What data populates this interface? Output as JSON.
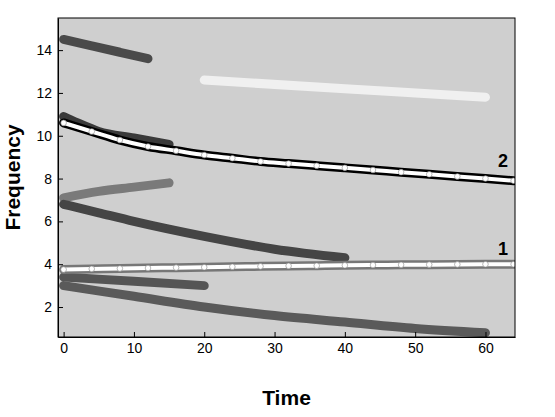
{
  "chart_data": {
    "type": "line",
    "x_label": "Time",
    "y_label": "Frequency",
    "xlim": [
      -0.8,
      64.2
    ],
    "ylim": [
      0.6,
      15.5
    ],
    "xticks": [
      0,
      10,
      20,
      30,
      40,
      50,
      60
    ],
    "yticks": [
      2,
      4,
      6,
      8,
      10,
      12,
      14
    ],
    "series": [
      {
        "color": "#4a4a4a",
        "line_style": "solid",
        "x": [
          0,
          4,
          8,
          12
        ],
        "values": [
          14.5,
          14.2,
          13.9,
          13.6
        ]
      },
      {
        "color": "#3a3a3a",
        "line_style": "solid",
        "x": [
          0,
          2,
          5,
          10,
          15
        ],
        "values": [
          10.9,
          10.6,
          10.2,
          9.9,
          9.6
        ]
      },
      {
        "color": "#7a7a7a",
        "line_style": "solid",
        "x": [
          0,
          5,
          10,
          15
        ],
        "values": [
          7.1,
          7.4,
          7.6,
          7.8
        ]
      },
      {
        "color": "#454545",
        "line_style": "solid",
        "x": [
          0,
          5,
          10,
          20,
          30,
          40
        ],
        "values": [
          6.8,
          6.4,
          6.0,
          5.3,
          4.7,
          4.3
        ]
      },
      {
        "color": "#555555",
        "line_style": "solid",
        "x": [
          0,
          10,
          20
        ],
        "values": [
          3.4,
          3.2,
          3.0
        ]
      },
      {
        "color": "#5a5a5a",
        "line_style": "solid",
        "x": [
          0,
          10,
          20,
          30,
          40,
          50,
          60
        ],
        "values": [
          3.0,
          2.5,
          2.0,
          1.6,
          1.3,
          1.0,
          0.8
        ]
      },
      {
        "color": "#f0f0f0",
        "line_style": "solid",
        "x": [
          20,
          40,
          60
        ],
        "values": [
          12.6,
          12.2,
          11.8
        ]
      },
      {
        "color": "#ffffff",
        "line_style": "solid",
        "marker": "circle",
        "x": [
          0,
          4,
          8,
          12,
          16,
          20,
          24,
          28,
          32,
          36,
          40,
          44,
          48,
          52,
          56,
          60,
          64
        ],
        "values": [
          3.75,
          3.78,
          3.8,
          3.82,
          3.84,
          3.86,
          3.88,
          3.9,
          3.92,
          3.93,
          3.95,
          3.96,
          3.97,
          3.98,
          3.99,
          4.0,
          4.0
        ]
      },
      {
        "color": "#ffffff",
        "line_style": "solid",
        "marker": "circle",
        "x": [
          0,
          4,
          8,
          12,
          16,
          20,
          24,
          28,
          32,
          36,
          40,
          44,
          48,
          52,
          56,
          60,
          64
        ],
        "values": [
          10.6,
          10.2,
          9.8,
          9.5,
          9.3,
          9.1,
          8.95,
          8.8,
          8.7,
          8.6,
          8.5,
          8.4,
          8.3,
          8.2,
          8.1,
          8.0,
          7.9
        ]
      }
    ],
    "annotations": [
      {
        "text": "1",
        "x": 62.5,
        "y": 4.45
      },
      {
        "text": "2",
        "x": 62.5,
        "y": 8.55
      }
    ]
  }
}
